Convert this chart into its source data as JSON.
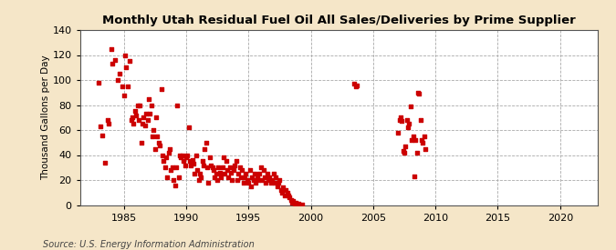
{
  "title": "Monthly Utah Residual Fuel Oil All Sales/Deliveries by Prime Supplier",
  "ylabel": "Thousand Gallons per Day",
  "source": "Source: U.S. Energy Information Administration",
  "figure_bg": "#f5e6c8",
  "axes_bg": "#ffffff",
  "marker_color": "#cc0000",
  "marker_size": 5,
  "xlim": [
    1981.5,
    2023
  ],
  "ylim": [
    0,
    140
  ],
  "yticks": [
    0,
    20,
    40,
    60,
    80,
    100,
    120,
    140
  ],
  "xticks": [
    1985,
    1990,
    1995,
    2000,
    2005,
    2010,
    2015,
    2020
  ],
  "data": [
    [
      1983.0,
      98
    ],
    [
      1983.1,
      63
    ],
    [
      1983.3,
      56
    ],
    [
      1983.5,
      34
    ],
    [
      1983.7,
      68
    ],
    [
      1983.8,
      65
    ],
    [
      1984.0,
      125
    ],
    [
      1984.1,
      113
    ],
    [
      1984.3,
      116
    ],
    [
      1984.5,
      100
    ],
    [
      1984.7,
      105
    ],
    [
      1984.9,
      95
    ],
    [
      1985.0,
      88
    ],
    [
      1985.1,
      120
    ],
    [
      1985.2,
      110
    ],
    [
      1985.3,
      95
    ],
    [
      1985.5,
      115
    ],
    [
      1985.6,
      68
    ],
    [
      1985.7,
      70
    ],
    [
      1985.8,
      65
    ],
    [
      1985.9,
      75
    ],
    [
      1986.0,
      72
    ],
    [
      1986.1,
      80
    ],
    [
      1986.2,
      68
    ],
    [
      1986.3,
      80
    ],
    [
      1986.4,
      50
    ],
    [
      1986.5,
      65
    ],
    [
      1986.6,
      70
    ],
    [
      1986.7,
      64
    ],
    [
      1986.8,
      73
    ],
    [
      1986.9,
      68
    ],
    [
      1987.0,
      85
    ],
    [
      1987.1,
      73
    ],
    [
      1987.2,
      80
    ],
    [
      1987.3,
      55
    ],
    [
      1987.4,
      60
    ],
    [
      1987.5,
      45
    ],
    [
      1987.6,
      70
    ],
    [
      1987.7,
      55
    ],
    [
      1987.8,
      50
    ],
    [
      1987.9,
      48
    ],
    [
      1988.0,
      93
    ],
    [
      1988.1,
      40
    ],
    [
      1988.2,
      35
    ],
    [
      1988.3,
      30
    ],
    [
      1988.4,
      38
    ],
    [
      1988.5,
      22
    ],
    [
      1988.6,
      42
    ],
    [
      1988.7,
      45
    ],
    [
      1988.8,
      28
    ],
    [
      1988.9,
      30
    ],
    [
      1989.0,
      20
    ],
    [
      1989.1,
      16
    ],
    [
      1989.2,
      30
    ],
    [
      1989.3,
      80
    ],
    [
      1989.4,
      22
    ],
    [
      1989.5,
      40
    ],
    [
      1989.6,
      38
    ],
    [
      1989.7,
      40
    ],
    [
      1989.8,
      35
    ],
    [
      1989.9,
      32
    ],
    [
      1990.0,
      38
    ],
    [
      1990.1,
      40
    ],
    [
      1990.2,
      62
    ],
    [
      1990.3,
      35
    ],
    [
      1990.4,
      32
    ],
    [
      1990.5,
      36
    ],
    [
      1990.6,
      33
    ],
    [
      1990.7,
      25
    ],
    [
      1990.8,
      40
    ],
    [
      1990.9,
      28
    ],
    [
      1991.0,
      20
    ],
    [
      1991.1,
      25
    ],
    [
      1991.2,
      22
    ],
    [
      1991.3,
      35
    ],
    [
      1991.4,
      32
    ],
    [
      1991.5,
      45
    ],
    [
      1991.6,
      50
    ],
    [
      1991.7,
      30
    ],
    [
      1991.8,
      18
    ],
    [
      1991.9,
      38
    ],
    [
      1992.0,
      32
    ],
    [
      1992.1,
      30
    ],
    [
      1992.2,
      28
    ],
    [
      1992.3,
      22
    ],
    [
      1992.4,
      25
    ],
    [
      1992.5,
      20
    ],
    [
      1992.6,
      30
    ],
    [
      1992.7,
      26
    ],
    [
      1992.8,
      22
    ],
    [
      1992.9,
      30
    ],
    [
      1993.0,
      38
    ],
    [
      1993.1,
      25
    ],
    [
      1993.2,
      35
    ],
    [
      1993.3,
      28
    ],
    [
      1993.4,
      22
    ],
    [
      1993.5,
      30
    ],
    [
      1993.6,
      26
    ],
    [
      1993.7,
      20
    ],
    [
      1993.8,
      28
    ],
    [
      1993.9,
      32
    ],
    [
      1994.0,
      35
    ],
    [
      1994.1,
      20
    ],
    [
      1994.2,
      25
    ],
    [
      1994.3,
      30
    ],
    [
      1994.4,
      22
    ],
    [
      1994.5,
      28
    ],
    [
      1994.6,
      18
    ],
    [
      1994.7,
      22
    ],
    [
      1994.8,
      25
    ],
    [
      1994.9,
      20
    ],
    [
      1995.0,
      18
    ],
    [
      1995.1,
      28
    ],
    [
      1995.2,
      15
    ],
    [
      1995.3,
      22
    ],
    [
      1995.4,
      20
    ],
    [
      1995.5,
      25
    ],
    [
      1995.6,
      18
    ],
    [
      1995.7,
      22
    ],
    [
      1995.8,
      20
    ],
    [
      1995.9,
      25
    ],
    [
      1996.0,
      30
    ],
    [
      1996.1,
      20
    ],
    [
      1996.2,
      28
    ],
    [
      1996.3,
      22
    ],
    [
      1996.4,
      18
    ],
    [
      1996.5,
      25
    ],
    [
      1996.6,
      20
    ],
    [
      1996.7,
      22
    ],
    [
      1996.8,
      18
    ],
    [
      1996.9,
      20
    ],
    [
      1997.0,
      25
    ],
    [
      1997.1,
      18
    ],
    [
      1997.2,
      22
    ],
    [
      1997.3,
      15
    ],
    [
      1997.4,
      18
    ],
    [
      1997.5,
      20
    ],
    [
      1997.6,
      12
    ],
    [
      1997.7,
      10
    ],
    [
      1997.8,
      14
    ],
    [
      1997.9,
      8
    ],
    [
      1998.0,
      12
    ],
    [
      1998.1,
      10
    ],
    [
      1998.2,
      8
    ],
    [
      1998.3,
      6
    ],
    [
      1998.4,
      4
    ],
    [
      1998.5,
      2
    ],
    [
      1998.6,
      3
    ],
    [
      1998.7,
      1
    ],
    [
      1998.8,
      2
    ],
    [
      1998.9,
      1
    ],
    [
      1999.0,
      1
    ],
    [
      1999.3,
      0.5
    ],
    [
      2003.5,
      97
    ],
    [
      2003.6,
      95
    ],
    [
      2003.7,
      96
    ],
    [
      2007.0,
      58
    ],
    [
      2007.1,
      68
    ],
    [
      2007.2,
      70
    ],
    [
      2007.3,
      67
    ],
    [
      2007.4,
      43
    ],
    [
      2007.5,
      42
    ],
    [
      2007.6,
      47
    ],
    [
      2007.7,
      68
    ],
    [
      2007.8,
      62
    ],
    [
      2007.9,
      65
    ],
    [
      2008.0,
      79
    ],
    [
      2008.1,
      52
    ],
    [
      2008.2,
      55
    ],
    [
      2008.3,
      23
    ],
    [
      2008.4,
      52
    ],
    [
      2008.5,
      42
    ],
    [
      2008.6,
      90
    ],
    [
      2008.7,
      89
    ],
    [
      2008.8,
      68
    ],
    [
      2008.9,
      52
    ],
    [
      2009.0,
      50
    ],
    [
      2009.1,
      55
    ],
    [
      2009.2,
      45
    ]
  ]
}
